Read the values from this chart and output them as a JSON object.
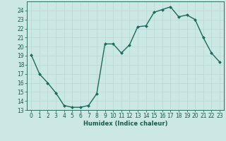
{
  "x": [
    0,
    1,
    2,
    3,
    4,
    5,
    6,
    7,
    8,
    9,
    10,
    11,
    12,
    13,
    14,
    15,
    16,
    17,
    18,
    19,
    20,
    21,
    22,
    23
  ],
  "y": [
    19.1,
    17.0,
    16.0,
    14.9,
    13.5,
    13.3,
    13.3,
    13.5,
    14.8,
    20.3,
    20.3,
    19.3,
    20.2,
    22.2,
    22.3,
    23.8,
    24.1,
    24.4,
    23.3,
    23.5,
    23.0,
    21.0,
    19.3,
    18.3
  ],
  "xlabel": "Humidex (Indice chaleur)",
  "ylim": [
    13,
    25
  ],
  "xlim": [
    -0.5,
    23.5
  ],
  "yticks": [
    13,
    14,
    15,
    16,
    17,
    18,
    19,
    20,
    21,
    22,
    23,
    24
  ],
  "xticks": [
    0,
    1,
    2,
    3,
    4,
    5,
    6,
    7,
    8,
    9,
    10,
    11,
    12,
    13,
    14,
    15,
    16,
    17,
    18,
    19,
    20,
    21,
    22,
    23
  ],
  "line_color": "#1a6b5a",
  "marker_color": "#1a6b5a",
  "bg_color": "#cce8e4",
  "grid_color": "#b8d8d2",
  "tick_color": "#1a5a4a",
  "label_fontsize": 6,
  "tick_fontsize": 5.5
}
